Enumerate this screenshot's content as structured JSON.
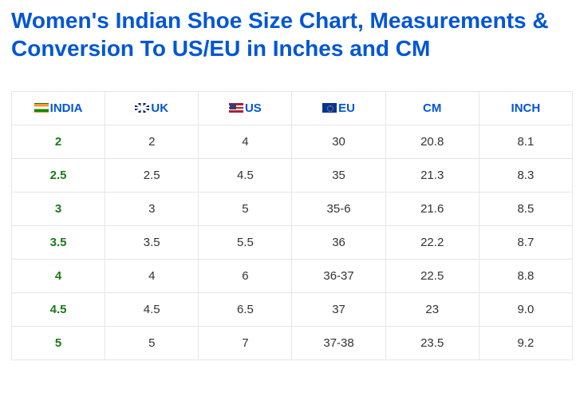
{
  "title": "Women's Indian Shoe Size Chart, Measurements & Conversion To US/EU in Inches and CM",
  "table": {
    "type": "table",
    "header_color": "#0056d6",
    "india_col_color": "#1a7a1a",
    "border_color": "#e6e6e6",
    "columns": [
      {
        "label": "INDIA",
        "flag": "india"
      },
      {
        "label": "UK",
        "flag": "uk"
      },
      {
        "label": "US",
        "flag": "us"
      },
      {
        "label": "EU",
        "flag": "eu"
      },
      {
        "label": "CM",
        "flag": null
      },
      {
        "label": "INCH",
        "flag": null
      }
    ],
    "rows": [
      [
        "2",
        "2",
        "4",
        "30",
        "20.8",
        "8.1"
      ],
      [
        "2.5",
        "2.5",
        "4.5",
        "35",
        "21.3",
        "8.3"
      ],
      [
        "3",
        "3",
        "5",
        "35-6",
        "21.6",
        "8.5"
      ],
      [
        "3.5",
        "3.5",
        "5.5",
        "36",
        "22.2",
        "8.7"
      ],
      [
        "4",
        "4",
        "6",
        "36-37",
        "22.5",
        "8.8"
      ],
      [
        "4.5",
        "4.5",
        "6.5",
        "37",
        "23",
        "9.0"
      ],
      [
        "5",
        "5",
        "7",
        "37-38",
        "23.5",
        "9.2"
      ]
    ]
  }
}
